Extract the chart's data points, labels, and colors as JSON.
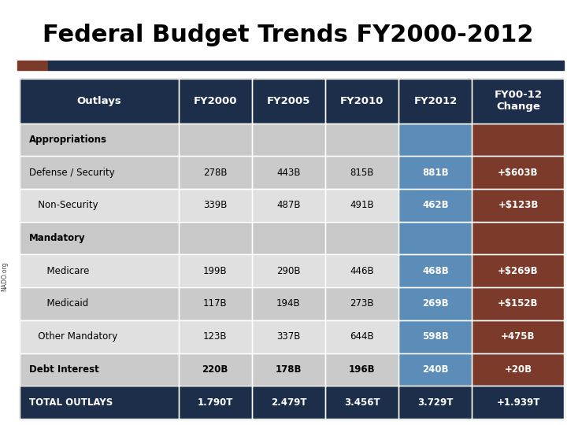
{
  "title": "Federal Budget Trends FY2000-2012",
  "title_color": "#000000",
  "title_fontsize": 22,
  "accent_bar_left_color": "#7B3A2A",
  "accent_bar_right_color": "#1C2E4A",
  "columns": [
    "Outlays",
    "FY2000",
    "FY2005",
    "FY2010",
    "FY2012",
    "FY00-12\nChange"
  ],
  "rows": [
    {
      "label": "Appropriations",
      "values": [
        "",
        "",
        "",
        "",
        ""
      ],
      "type": "section",
      "indent": 0
    },
    {
      "label": "Defense / Security",
      "values": [
        "278B",
        "443B",
        "815B",
        "881B",
        "+$603B"
      ],
      "type": "data",
      "indent": 0
    },
    {
      "label": "Non-Security",
      "values": [
        "339B",
        "487B",
        "491B",
        "462B",
        "+$123B"
      ],
      "type": "data",
      "indent": 1
    },
    {
      "label": "Mandatory",
      "values": [
        "",
        "",
        "",
        "",
        ""
      ],
      "type": "section",
      "indent": 0
    },
    {
      "label": "Medicare",
      "values": [
        "199B",
        "290B",
        "446B",
        "468B",
        "+$269B"
      ],
      "type": "data",
      "indent": 2
    },
    {
      "label": "Medicaid",
      "values": [
        "117B",
        "194B",
        "273B",
        "269B",
        "+$152B"
      ],
      "type": "data",
      "indent": 2
    },
    {
      "label": "Other Mandatory",
      "values": [
        "123B",
        "337B",
        "644B",
        "598B",
        "+475B"
      ],
      "type": "data",
      "indent": 1
    },
    {
      "label": "Debt Interest",
      "values": [
        "220B",
        "178B",
        "196B",
        "240B",
        "+20B"
      ],
      "type": "debt",
      "indent": 0
    },
    {
      "label": "TOTAL OUTLAYS",
      "values": [
        "1.790T",
        "2.479T",
        "3.456T",
        "3.729T",
        "+1.939T"
      ],
      "type": "total",
      "indent": 0
    }
  ],
  "header_bg": "#1C2E4A",
  "header_fg": "#FFFFFF",
  "section_bg": "#C8C8C8",
  "section_fg": "#000000",
  "data_bg_light": "#E0E0E0",
  "data_bg_dark": "#D0D0D0",
  "fy2012_bg": "#5B8DB8",
  "fy2012_fg": "#FFFFFF",
  "change_bg": "#7B3A2A",
  "change_fg": "#FFFFFF",
  "total_bg": "#1C2E4A",
  "total_fg": "#FFFFFF",
  "sidebar_text": "NADO.org",
  "bg_color": "#FFFFFF"
}
